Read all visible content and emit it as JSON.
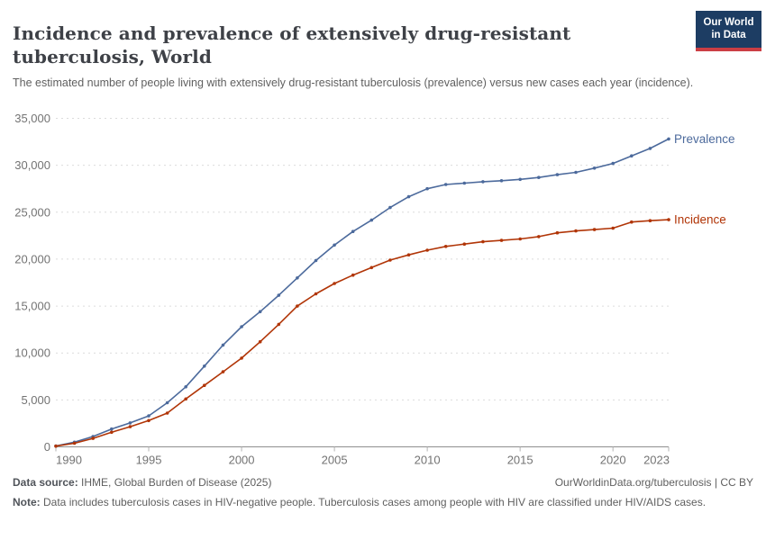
{
  "header": {
    "title": "Incidence and prevalence of extensively drug-resistant tuberculosis, World",
    "subtitle": "The estimated number of people living with extensively drug-resistant tuberculosis (prevalence) versus new cases each year (incidence).",
    "logo": {
      "line1": "Our World",
      "line2": "in Data"
    }
  },
  "chart_data": {
    "type": "line",
    "title": "Incidence and prevalence of extensively drug-resistant tuberculosis, World",
    "xlabel": "",
    "ylabel": "",
    "x": [
      1990,
      1991,
      1992,
      1993,
      1994,
      1995,
      1996,
      1997,
      1998,
      1999,
      2000,
      2001,
      2002,
      2003,
      2004,
      2005,
      2006,
      2007,
      2008,
      2009,
      2010,
      2011,
      2012,
      2013,
      2014,
      2015,
      2016,
      2017,
      2018,
      2019,
      2020,
      2021,
      2022,
      2023
    ],
    "series": [
      {
        "name": "Prevalence",
        "color": "#4C6A9C",
        "values": [
          100,
          500,
          1100,
          1900,
          2550,
          3300,
          4700,
          6400,
          8600,
          10850,
          12800,
          14400,
          16150,
          18000,
          19850,
          21500,
          22950,
          24150,
          25500,
          26650,
          27500,
          27950,
          28100,
          28250,
          28350,
          28500,
          28700,
          29000,
          29250,
          29700,
          30200,
          31000,
          31800,
          32800
        ]
      },
      {
        "name": "Incidence",
        "color": "#B13507",
        "values": [
          80,
          380,
          900,
          1550,
          2150,
          2800,
          3600,
          5100,
          6550,
          8000,
          9450,
          11200,
          13050,
          15000,
          16300,
          17400,
          18300,
          19100,
          19900,
          20450,
          20950,
          21350,
          21600,
          21850,
          22000,
          22150,
          22400,
          22800,
          23000,
          23150,
          23300,
          23950,
          24100,
          24200
        ]
      }
    ],
    "ylim": [
      0,
      35000
    ],
    "yticks": [
      0,
      5000,
      10000,
      15000,
      20000,
      25000,
      30000,
      35000
    ],
    "xticks": [
      1990,
      1995,
      2000,
      2005,
      2010,
      2015,
      2020,
      2023
    ],
    "grid": "horizontal-dashed",
    "legend_position": "line-end-labels"
  },
  "footer": {
    "datasource_label": "Data source:",
    "datasource_text": " IHME, Global Burden of Disease (2025)",
    "link_text": "OurWorldinData.org/tuberculosis | CC BY",
    "note_label": "Note:",
    "note_text": " Data includes tuberculosis cases in HIV-negative people. Tuberculosis cases among people with HIV are classified under HIV/AIDS cases."
  },
  "colors": {
    "prevalence": "#4C6A9C",
    "incidence": "#B13507",
    "grid": "#dcdcdc",
    "axis_line": "#8f8f8f",
    "tick_mark": "#b3b3b3",
    "tick_text": "#737373",
    "logo_bg": "#1d3d63",
    "logo_red": "#cb3e44"
  }
}
